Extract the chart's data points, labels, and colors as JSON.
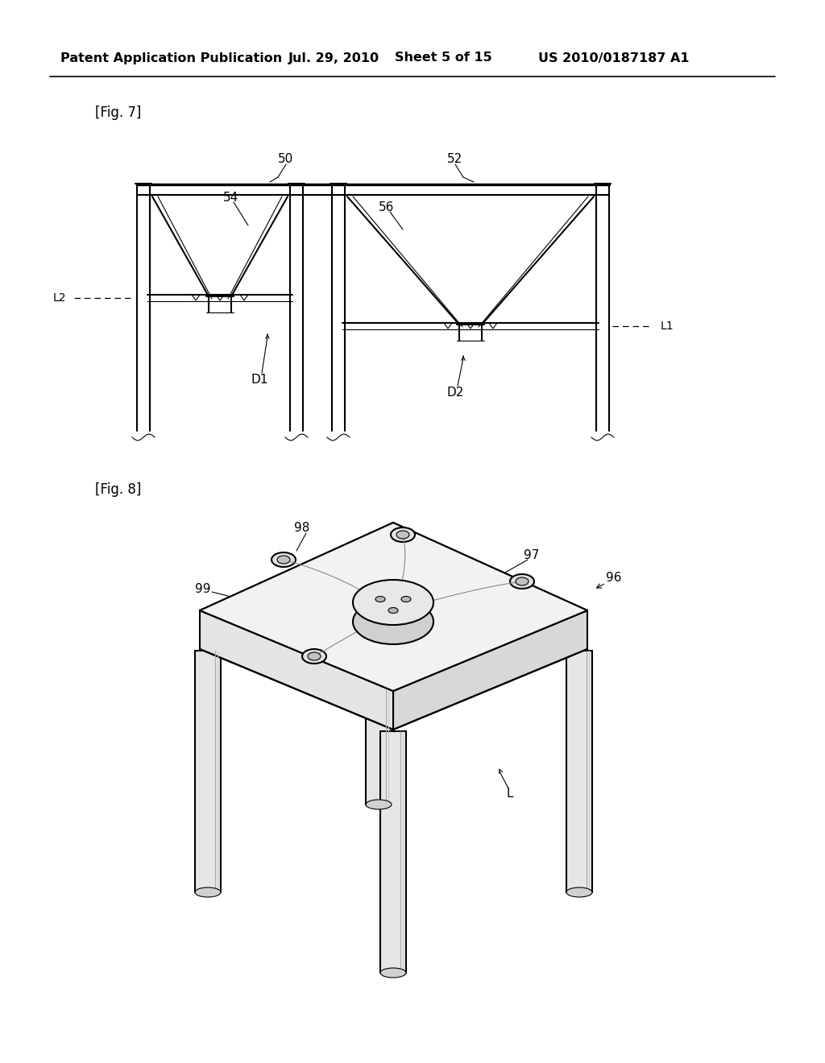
{
  "bg_color": "#ffffff",
  "line_color": "#000000",
  "header_text": "Patent Application Publication",
  "header_date": "Jul. 29, 2010",
  "header_sheet": "Sheet 5 of 15",
  "header_patent": "US 2010/0187187 A1",
  "fig7_label": "[Fig. 7]",
  "fig8_label": "[Fig. 8]"
}
